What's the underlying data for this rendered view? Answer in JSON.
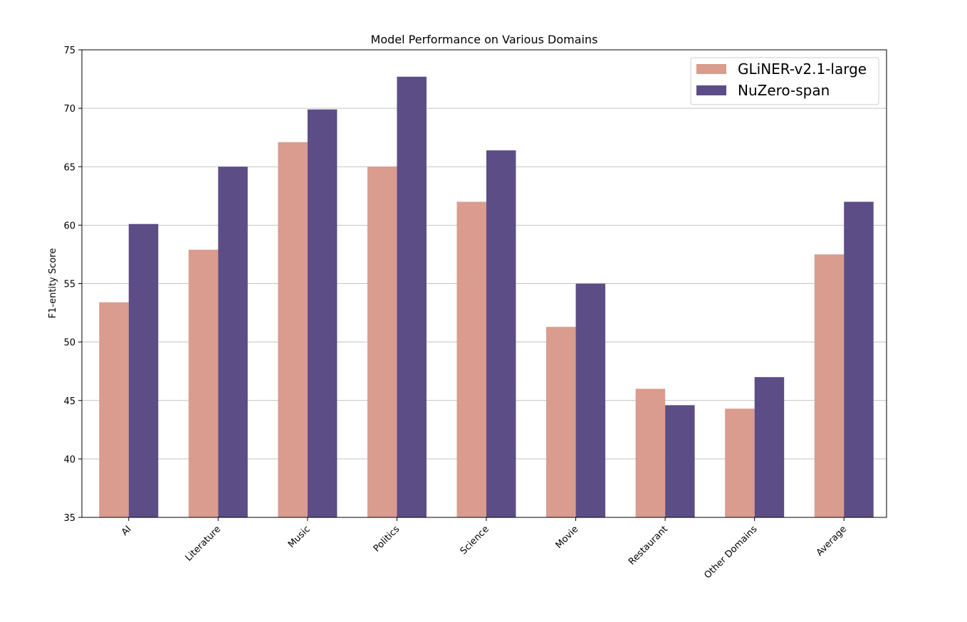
{
  "chart_data": {
    "type": "bar",
    "title": "Model Performance on Various Domains",
    "xlabel": "",
    "ylabel": "F1-entity Score",
    "ylim": [
      35,
      75
    ],
    "yticks": [
      "35",
      "40",
      "45",
      "50",
      "55",
      "60",
      "65",
      "70",
      "75"
    ],
    "grid": "horizontal",
    "legend_position": "top-right",
    "categories": [
      "AI",
      "Literature",
      "Music",
      "Politics",
      "Science",
      "Movie",
      "Restaurant",
      "Other Domains",
      "Average"
    ],
    "series": [
      {
        "name": "GLiNER-v2.1-large",
        "color": "#d99c8f",
        "values": [
          53.4,
          57.9,
          67.1,
          65.0,
          62.0,
          51.3,
          46.0,
          44.3,
          57.5
        ]
      },
      {
        "name": "NuZero-span",
        "color": "#5c4d87",
        "values": [
          60.1,
          65.0,
          69.9,
          72.7,
          66.4,
          55.0,
          44.6,
          47.0,
          62.0
        ]
      }
    ]
  }
}
